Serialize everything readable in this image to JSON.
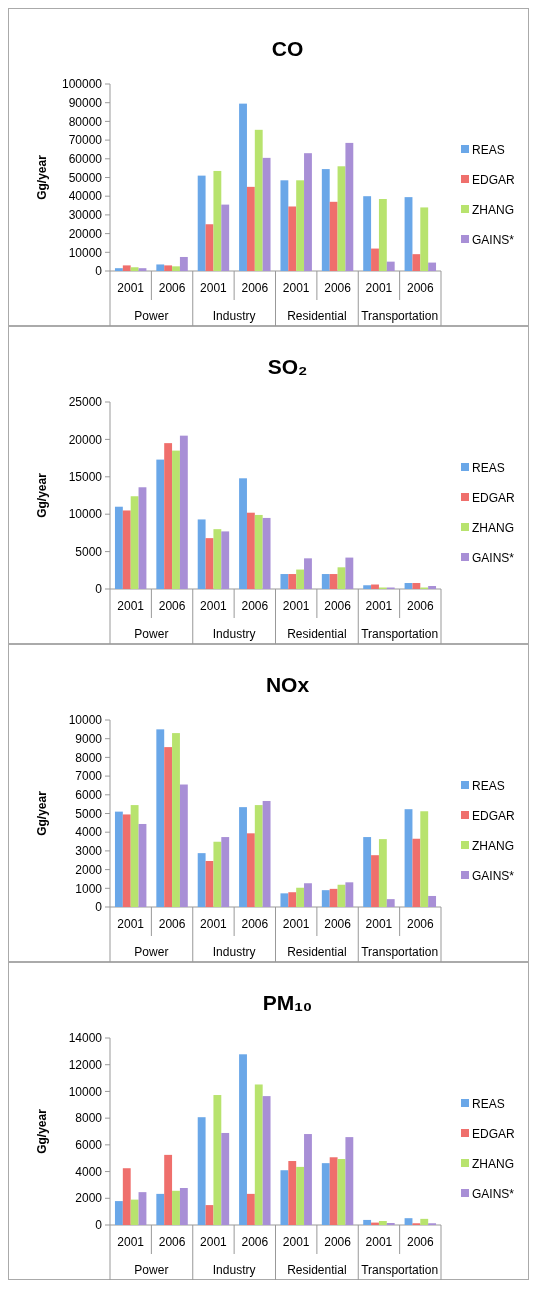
{
  "chart_data": [
    {
      "type": "bar",
      "title": "CO",
      "ylabel": "Gg/year",
      "categories": [
        "2001",
        "2006",
        "2001",
        "2006",
        "2001",
        "2006",
        "2001",
        "2006"
      ],
      "annotations": [
        "Power",
        "Industry",
        "Residential",
        "Transportation"
      ],
      "ylim": [
        0,
        100000
      ],
      "yticks": [
        0,
        10000,
        20000,
        30000,
        40000,
        50000,
        60000,
        70000,
        80000,
        90000,
        100000
      ],
      "legend": "right",
      "series": [
        {
          "name": "REAS",
          "color": "#6aa7e8",
          "values": [
            1500,
            3500,
            51000,
            89500,
            48500,
            54500,
            40000,
            39500
          ]
        },
        {
          "name": "EDGAR",
          "color": "#ef6f6c",
          "values": [
            3000,
            3000,
            25000,
            45000,
            34500,
            37000,
            12000,
            9000
          ]
        },
        {
          "name": "ZHANG",
          "color": "#b8e36e",
          "values": [
            2000,
            2500,
            53500,
            75500,
            48500,
            56000,
            38500,
            34000
          ]
        },
        {
          "name": "GAINS*",
          "color": "#a88fd6",
          "values": [
            1500,
            7500,
            35500,
            60500,
            63000,
            68500,
            5000,
            4500
          ]
        }
      ]
    },
    {
      "type": "bar",
      "title": "SO₂",
      "ylabel": "Gg/year",
      "categories": [
        "2001",
        "2006",
        "2001",
        "2006",
        "2001",
        "2006",
        "2001",
        "2006"
      ],
      "annotations": [
        "Power",
        "Industry",
        "Residential",
        "Transportation"
      ],
      "ylim": [
        0,
        25000
      ],
      "yticks": [
        0,
        5000,
        10000,
        15000,
        20000,
        25000
      ],
      "legend": "right",
      "series": [
        {
          "name": "REAS",
          "color": "#6aa7e8",
          "values": [
            11000,
            17300,
            9300,
            14800,
            2000,
            2000,
            500,
            800
          ]
        },
        {
          "name": "EDGAR",
          "color": "#ef6f6c",
          "values": [
            10500,
            19500,
            6800,
            10200,
            2000,
            2000,
            600,
            800
          ]
        },
        {
          "name": "ZHANG",
          "color": "#b8e36e",
          "values": [
            12400,
            18500,
            8000,
            9900,
            2600,
            2900,
            200,
            200
          ]
        },
        {
          "name": "GAINS*",
          "color": "#a88fd6",
          "values": [
            13600,
            20500,
            7700,
            9500,
            4100,
            4200,
            200,
            400
          ]
        }
      ]
    },
    {
      "type": "bar",
      "title": "NOx",
      "ylabel": "Gg/year",
      "categories": [
        "2001",
        "2006",
        "2001",
        "2006",
        "2001",
        "2006",
        "2001",
        "2006"
      ],
      "annotations": [
        "Power",
        "Industry",
        "Residential",
        "Transportation"
      ],
      "ylim": [
        0,
        10000
      ],
      "yticks": [
        0,
        1000,
        2000,
        3000,
        4000,
        5000,
        6000,
        7000,
        8000,
        9000,
        10000
      ],
      "legend": "right",
      "series": [
        {
          "name": "REAS",
          "color": "#6aa7e8",
          "values": [
            5100,
            9500,
            2880,
            5340,
            730,
            900,
            3740,
            5230
          ]
        },
        {
          "name": "EDGAR",
          "color": "#ef6f6c",
          "values": [
            4950,
            8550,
            2460,
            3940,
            790,
            970,
            2770,
            3650
          ]
        },
        {
          "name": "ZHANG",
          "color": "#b8e36e",
          "values": [
            5450,
            9300,
            3490,
            5450,
            1030,
            1190,
            3630,
            5120
          ]
        },
        {
          "name": "GAINS*",
          "color": "#a88fd6",
          "values": [
            4440,
            6550,
            3740,
            5670,
            1270,
            1320,
            420,
            590
          ]
        }
      ]
    },
    {
      "type": "bar",
      "title": "PM₁₀",
      "ylabel": "Gg/year",
      "categories": [
        "2001",
        "2006",
        "2001",
        "2006",
        "2001",
        "2006",
        "2001",
        "2006"
      ],
      "annotations": [
        "Power",
        "Industry",
        "Residential",
        "Transportation"
      ],
      "ylim": [
        0,
        14000
      ],
      "yticks": [
        0,
        2000,
        4000,
        6000,
        8000,
        10000,
        12000,
        14000
      ],
      "legend": "right",
      "series": [
        {
          "name": "REAS",
          "color": "#6aa7e8",
          "values": [
            1790,
            2330,
            8070,
            12780,
            4100,
            4630,
            380,
            510
          ]
        },
        {
          "name": "EDGAR",
          "color": "#ef6f6c",
          "values": [
            4250,
            5250,
            1490,
            2330,
            4790,
            5070,
            180,
            130
          ]
        },
        {
          "name": "ZHANG",
          "color": "#b8e36e",
          "values": [
            1900,
            2560,
            9730,
            10520,
            4350,
            4940,
            300,
            460
          ]
        },
        {
          "name": "GAINS*",
          "color": "#a88fd6",
          "values": [
            2460,
            2770,
            6890,
            9650,
            6810,
            6580,
            150,
            130
          ]
        }
      ]
    }
  ]
}
